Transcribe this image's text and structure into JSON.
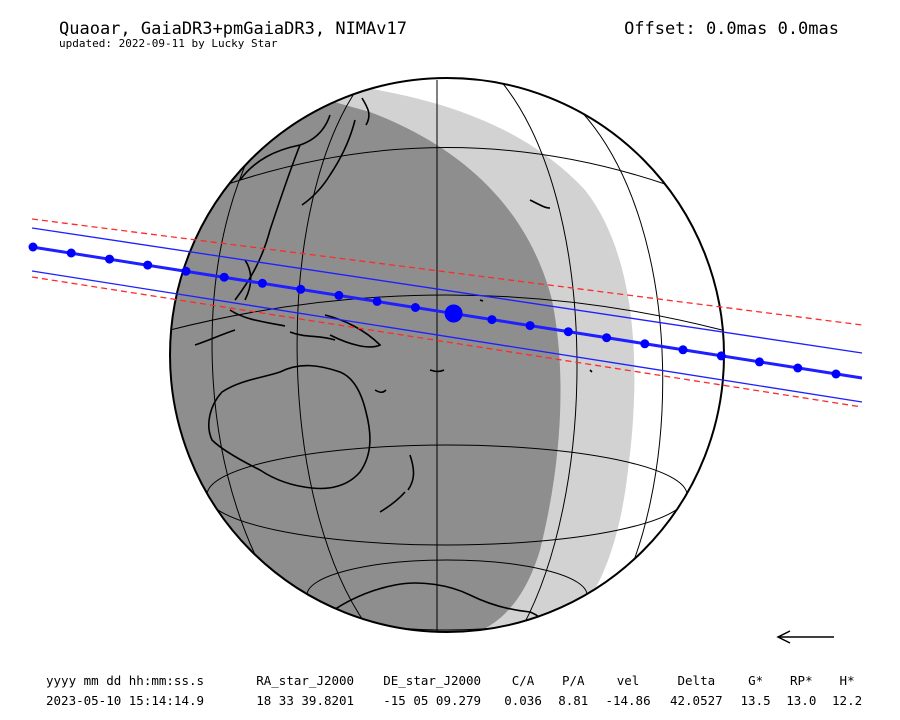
{
  "header": {
    "title": "Quaoar, GaiaDR3+pmGaiaDR3, NIMAv17",
    "subtitle": "updated: 2022-09-11 by Lucky Star",
    "offset": "Offset: 0.0mas 0.0mas"
  },
  "table": {
    "headers": [
      "yyyy mm dd hh:mm:ss.s",
      "RA_star_J2000",
      "DE_star_J2000",
      "C/A",
      "P/A",
      "vel",
      "Delta",
      "G*",
      "RP*",
      "H*"
    ],
    "values": [
      "2023-05-10 15:14:14.9",
      "18 33 39.8201",
      "-15 05 09.279",
      "0.036",
      "8.81",
      "-14.86",
      "42.0527",
      "13.5",
      "13.0",
      "12.2"
    ]
  },
  "colors": {
    "night_shadow": "#8e8e8e",
    "twilight_shadow": "#d2d2d2",
    "shadow_path": "#1f1fff",
    "error_limits": "#ff2a2a",
    "center_dot": "#0000ff",
    "graticule": "#000000"
  },
  "icons": {
    "direction_arrow": "left-arrow-icon"
  }
}
